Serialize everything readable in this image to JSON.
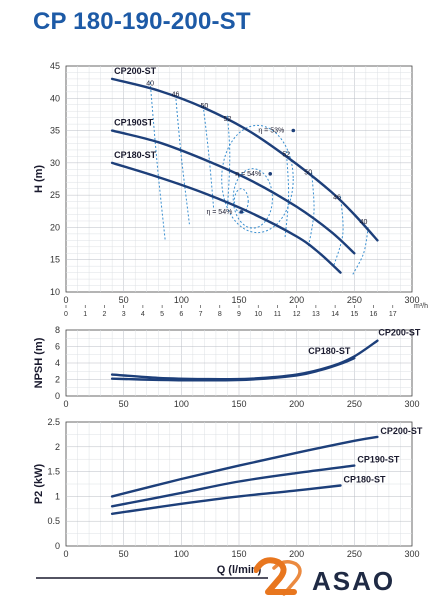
{
  "title": "CP 180-190-200-ST",
  "brand": {
    "name": "ASAO",
    "text_color": "#1f2a44",
    "accent": "#e8761e"
  },
  "colors": {
    "curve": "#1d3f7a",
    "efficiency": "#3a8fd0",
    "title": "#1d5aa6"
  },
  "chart_data": [
    {
      "type": "line",
      "id": "head",
      "xlabel": "",
      "ylabel": "H (m)",
      "xlim": [
        0,
        300
      ],
      "ylim": [
        10,
        45
      ],
      "xticks": [
        0,
        50,
        100,
        150,
        200,
        250,
        300
      ],
      "yticks": [
        10,
        15,
        20,
        25,
        30,
        35,
        40,
        45
      ],
      "secondary_x": {
        "unit": "m³/h",
        "ticks": [
          0,
          1,
          2,
          3,
          4,
          5,
          6,
          7,
          8,
          9,
          10,
          11,
          12,
          13,
          14,
          15,
          16,
          17
        ],
        "lpm_per_unit": 16.667
      },
      "grid": true,
      "series": [
        {
          "name": "CP200-ST",
          "x": [
            40,
            80,
            120,
            160,
            200,
            230,
            250,
            270
          ],
          "y": [
            43,
            41.2,
            38.5,
            34.8,
            29.8,
            25.5,
            22,
            18
          ]
        },
        {
          "name": "CP190ST",
          "x": [
            40,
            80,
            120,
            160,
            200,
            230,
            250
          ],
          "y": [
            35,
            33.2,
            30.5,
            27.3,
            23.2,
            19.3,
            16
          ]
        },
        {
          "name": "CP180-ST",
          "x": [
            40,
            80,
            120,
            160,
            200,
            220,
            238
          ],
          "y": [
            30,
            27.8,
            25.3,
            22.3,
            18.6,
            16,
            13
          ]
        }
      ],
      "efficiency_labels": [
        {
          "text": "40",
          "x": 73,
          "y": 42
        },
        {
          "text": "46",
          "x": 95,
          "y": 40.3
        },
        {
          "text": "50",
          "x": 120,
          "y": 38.5
        },
        {
          "text": "52",
          "x": 140,
          "y": 36.5
        },
        {
          "text": "η = 53%",
          "x": 178,
          "y": 34.7
        },
        {
          "text": "52",
          "x": 191,
          "y": 31
        },
        {
          "text": "50",
          "x": 210,
          "y": 28.2
        },
        {
          "text": "46",
          "x": 235,
          "y": 24.3
        },
        {
          "text": "40",
          "x": 258,
          "y": 20.5
        },
        {
          "text": "η = 54%",
          "x": 158,
          "y": 28
        },
        {
          "text": "η = 54%",
          "x": 133,
          "y": 22.1
        }
      ],
      "efficiency_contours": [
        {
          "eff": "40",
          "x": [
            73,
            79,
            86
          ],
          "y": [
            42.5,
            30,
            18
          ]
        },
        {
          "eff": "46",
          "x": [
            95,
            100,
            107
          ],
          "y": [
            40.5,
            31,
            20.5
          ]
        },
        {
          "eff": "50",
          "x": [
            119,
            124,
            128
          ],
          "y": [
            38.8,
            31,
            23
          ]
        },
        {
          "eff": "52",
          "x": [
            140,
            142,
            140
          ],
          "y": [
            37.3,
            31,
            23
          ]
        },
        {
          "eff": "52",
          "x": [
            191,
            193,
            190
          ],
          "y": [
            31.8,
            25,
            18.5
          ]
        },
        {
          "eff": "50",
          "x": [
            213,
            215,
            210
          ],
          "y": [
            28.5,
            22.5,
            16.8
          ]
        },
        {
          "eff": "46",
          "x": [
            238,
            240,
            232
          ],
          "y": [
            24.8,
            19,
            14
          ]
        },
        {
          "eff": "40",
          "x": [
            262,
            258,
            248
          ],
          "y": [
            20,
            16,
            12.5
          ]
        }
      ],
      "efficiency_rings": [
        {
          "eff": "η = 53%",
          "cx": 166,
          "cy": 27.5,
          "rx": 31,
          "ry": 8.3
        },
        {
          "eff": "η = 54%",
          "cx": 162,
          "cy": 24.5,
          "rx": 17,
          "ry": 4.6
        },
        {
          "eff": "η = 54%",
          "cx": 152,
          "cy": 24.1,
          "rx": 6,
          "ry": 1.9
        }
      ]
    },
    {
      "type": "line",
      "id": "npsh",
      "xlabel": "",
      "ylabel": "NPSH (m)",
      "xlim": [
        0,
        300
      ],
      "ylim": [
        0,
        8
      ],
      "xticks": [
        0,
        50,
        100,
        150,
        200,
        250,
        300
      ],
      "yticks": [
        0,
        2,
        4,
        6,
        8
      ],
      "grid": true,
      "series": [
        {
          "name": "CP200-ST",
          "x": [
            40,
            80,
            120,
            160,
            200,
            230,
            250,
            270
          ],
          "y": [
            2.6,
            2.2,
            2.05,
            2.1,
            2.6,
            3.6,
            4.8,
            6.7
          ]
        },
        {
          "name": "CP180-ST",
          "x": [
            40,
            80,
            120,
            160,
            200,
            220,
            240,
            250
          ],
          "y": [
            2.1,
            1.95,
            1.9,
            2.0,
            2.5,
            3.1,
            4.0,
            4.6
          ]
        }
      ]
    },
    {
      "type": "line",
      "id": "power",
      "xlabel": "Q (l/min)",
      "ylabel": "P2 (kW)",
      "xlim": [
        0,
        300
      ],
      "ylim": [
        0,
        2.5
      ],
      "xticks": [
        0,
        50,
        100,
        150,
        200,
        250,
        300
      ],
      "yticks": [
        0,
        0.5,
        1,
        1.5,
        2,
        2.5
      ],
      "grid": true,
      "series": [
        {
          "name": "CP200-ST",
          "x": [
            40,
            100,
            150,
            200,
            250,
            270
          ],
          "y": [
            1.0,
            1.35,
            1.62,
            1.88,
            2.12,
            2.2
          ]
        },
        {
          "name": "CP190-ST",
          "x": [
            40,
            100,
            150,
            200,
            250
          ],
          "y": [
            0.8,
            1.07,
            1.3,
            1.47,
            1.62
          ]
        },
        {
          "name": "CP180-ST",
          "x": [
            40,
            100,
            150,
            200,
            238
          ],
          "y": [
            0.65,
            0.85,
            1.0,
            1.12,
            1.22
          ]
        }
      ]
    }
  ]
}
